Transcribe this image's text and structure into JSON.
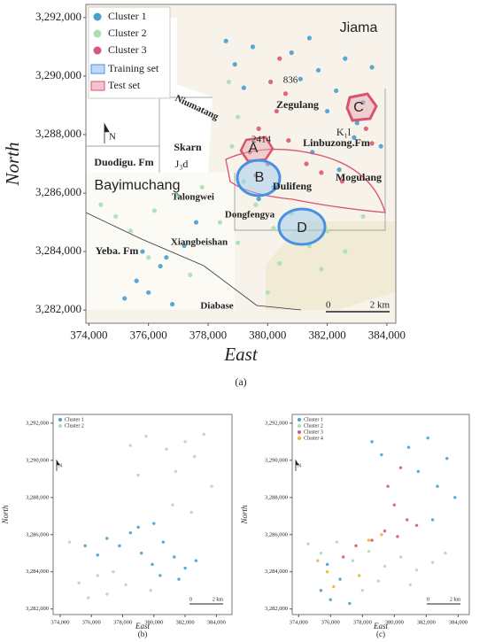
{
  "chart_data": [
    {
      "type": "scatter",
      "caption": "(a)",
      "x_label": "East",
      "y_label": "North",
      "xlim": [
        373900,
        384300
      ],
      "ylim": [
        3281550,
        3292450
      ],
      "xticks": [
        {
          "value": 374000,
          "label": "374,000"
        },
        {
          "value": 376000,
          "label": "376,000"
        },
        {
          "value": 378000,
          "label": "378,000"
        },
        {
          "value": 380000,
          "label": "380,000"
        },
        {
          "value": 382000,
          "label": "382,000"
        },
        {
          "value": 384000,
          "label": "384,000"
        }
      ],
      "yticks": [
        {
          "value": 3282000,
          "label": "3,282,000"
        },
        {
          "value": 3284000,
          "label": "3,284,000"
        },
        {
          "value": 3286000,
          "label": "3,286,000"
        },
        {
          "value": 3288000,
          "label": "3,288,000"
        },
        {
          "value": 3290000,
          "label": "3,290,000"
        },
        {
          "value": 3292000,
          "label": "3,292,000"
        }
      ],
      "legend": "upper left",
      "series": [
        {
          "name": "Cluster 1",
          "color": "#4a9fce",
          "x": [
            378600,
            378900,
            379200,
            379500,
            380800,
            381100,
            381400,
            381700,
            382000,
            382300,
            382600,
            382900,
            383200,
            383500,
            383800,
            381500,
            382400,
            383000,
            375200,
            375600,
            376000,
            376400,
            376800,
            377200,
            375800,
            376600,
            377600,
            379700,
            380200
          ],
          "y": [
            3291200,
            3290400,
            3289600,
            3291000,
            3290800,
            3289900,
            3291300,
            3290200,
            3288800,
            3289500,
            3290600,
            3287900,
            3289100,
            3290300,
            3287600,
            3287400,
            3286800,
            3288400,
            3282400,
            3283000,
            3282600,
            3283500,
            3282200,
            3284200,
            3284000,
            3283800,
            3285000,
            3285800,
            3286200
          ]
        },
        {
          "name": "Cluster 2",
          "color": "#a8e0b0",
          "x": [
            374400,
            374900,
            375400,
            376200,
            377000,
            377800,
            378400,
            379000,
            379600,
            380200,
            380800,
            381400,
            382000,
            382600,
            383200,
            379200,
            380400,
            381800,
            378700,
            379000,
            378800,
            377400,
            376000,
            380000
          ],
          "y": [
            3285600,
            3285200,
            3284700,
            3285400,
            3285900,
            3286200,
            3285000,
            3284300,
            3285600,
            3284800,
            3285300,
            3284200,
            3284700,
            3284000,
            3285200,
            3286400,
            3283600,
            3283400,
            3289800,
            3288600,
            3287600,
            3283200,
            3283800,
            3282600
          ]
        },
        {
          "name": "Cluster 3",
          "color": "#d9577a",
          "x": [
            379400,
            379700,
            380000,
            380300,
            380600,
            379600,
            380100,
            380700,
            381300,
            381800,
            383300,
            383500,
            382500,
            380400
          ],
          "y": [
            3287400,
            3288200,
            3287000,
            3288800,
            3289400,
            3286600,
            3289800,
            3287800,
            3287000,
            3286700,
            3288200,
            3287700,
            3286400,
            3290600
          ]
        }
      ],
      "regions": [
        {
          "name": "Training set",
          "color": "#4a90e2"
        },
        {
          "name": "Test set",
          "color": "#d9536e"
        }
      ],
      "annotations": [
        "Jiama",
        "836",
        "Zegulang",
        "C",
        "Niumatang",
        "K₁l",
        "Linbuzong.Fm",
        "Skarn",
        "2414",
        "A",
        "J₃d",
        "Duodigu. Fm",
        "Bayimuchang",
        "B",
        "Dulifeng",
        "Mogulang",
        "Talongwei",
        "Dongfengya",
        "D",
        "Xiangbeishan",
        "Yeba. Fm",
        "Diabase",
        "N"
      ],
      "scalebar_labels": [
        "0",
        "2 km"
      ]
    },
    {
      "type": "scatter",
      "caption": "(b)",
      "x_label": "East",
      "y_label": "North",
      "xlim": [
        373550,
        385000
      ],
      "ylim": [
        3281700,
        3292470
      ],
      "xticks": [
        {
          "value": 374000,
          "label": "374,000"
        },
        {
          "value": 376000,
          "label": "376,000"
        },
        {
          "value": 378000,
          "label": "378,000"
        },
        {
          "value": 380000,
          "label": "380,000"
        },
        {
          "value": 382000,
          "label": "382,000"
        },
        {
          "value": 384000,
          "label": "384,000"
        }
      ],
      "yticks": [
        {
          "value": 3282000,
          "label": "3,282,000"
        },
        {
          "value": 3284000,
          "label": "3,284,000"
        },
        {
          "value": 3286000,
          "label": "3,286,000"
        },
        {
          "value": 3288000,
          "label": "3,288,000"
        },
        {
          "value": 3290000,
          "label": "3,290,000"
        },
        {
          "value": 3292000,
          "label": "3,292,000"
        }
      ],
      "legend": "upper left",
      "series": [
        {
          "name": "Cluster 1",
          "color": "#4a9fce",
          "x": [
            377000,
            377800,
            378500,
            379200,
            379900,
            380600,
            381300,
            382000,
            382700,
            379000,
            380400,
            381600,
            375600,
            376400,
            380000
          ],
          "y": [
            3285800,
            3285400,
            3286100,
            3285000,
            3284400,
            3285600,
            3284800,
            3284200,
            3284600,
            3286400,
            3283800,
            3283600,
            3285400,
            3284900,
            3286600
          ]
        },
        {
          "name": "Cluster 2",
          "color": "#a8e0b0",
          "x": [
            378500,
            379000,
            379500,
            380800,
            381400,
            382000,
            382600,
            383200,
            383700,
            381200,
            382400,
            374600,
            375200,
            375800,
            376400,
            377000,
            377400,
            378200,
            379800
          ],
          "y": [
            3290800,
            3289200,
            3291300,
            3290600,
            3289400,
            3291000,
            3290200,
            3291400,
            3288600,
            3287600,
            3287200,
            3285600,
            3283400,
            3282600,
            3283800,
            3282800,
            3284000,
            3283300,
            3283000
          ]
        }
      ],
      "annotations": [
        "N"
      ],
      "scalebar_labels": [
        "0",
        "2 km"
      ]
    },
    {
      "type": "scatter",
      "caption": "(c)",
      "x_label": "East",
      "y_label": "North",
      "xlim": [
        373600,
        384700
      ],
      "ylim": [
        3281700,
        3292470
      ],
      "xticks": [
        {
          "value": 374000,
          "label": "374,000"
        },
        {
          "value": 376000,
          "label": "376,000"
        },
        {
          "value": 378000,
          "label": "378,000"
        },
        {
          "value": 380000,
          "label": "380,000"
        },
        {
          "value": 382000,
          "label": "382,000"
        },
        {
          "value": 384000,
          "label": "384,000"
        }
      ],
      "yticks": [
        {
          "value": 3282000,
          "label": "3,282,000"
        },
        {
          "value": 3284000,
          "label": "3,284,000"
        },
        {
          "value": 3286000,
          "label": "3,286,000"
        },
        {
          "value": 3288000,
          "label": "3,288,000"
        },
        {
          "value": 3290000,
          "label": "3,290,000"
        },
        {
          "value": 3292000,
          "label": "3,292,000"
        }
      ],
      "legend": "upper left",
      "series": [
        {
          "name": "Cluster 1",
          "color": "#4a9fce",
          "x": [
            378600,
            379200,
            380900,
            381500,
            382100,
            382700,
            383300,
            383800,
            382400,
            375400,
            376000,
            376600,
            377200,
            375800
          ],
          "y": [
            3291000,
            3290300,
            3290700,
            3289400,
            3291200,
            3288600,
            3290100,
            3288000,
            3286800,
            3283000,
            3282500,
            3283600,
            3282300,
            3284400
          ]
        },
        {
          "name": "Cluster 2",
          "color": "#a8e0b0",
          "x": [
            374600,
            375400,
            376400,
            377400,
            378400,
            379400,
            380400,
            381400,
            382400,
            383200,
            379000,
            381000,
            378000
          ],
          "y": [
            3285500,
            3285000,
            3285600,
            3284600,
            3285100,
            3284300,
            3284800,
            3284100,
            3284500,
            3285000,
            3283500,
            3283300,
            3283000
          ]
        },
        {
          "name": "Cluster 3",
          "color": "#d9577a",
          "x": [
            379600,
            380000,
            380400,
            380800,
            379400,
            378600,
            377600,
            376800,
            381400,
            380200
          ],
          "y": [
            3288600,
            3287600,
            3289600,
            3286800,
            3286200,
            3285700,
            3285400,
            3284800,
            3286500,
            3285900
          ]
        },
        {
          "name": "Cluster 4",
          "color": "#f0b429",
          "x": [
            375200,
            375800,
            376200,
            377800,
            379200,
            378400
          ],
          "y": [
            3284600,
            3284000,
            3283200,
            3283800,
            3286000,
            3285700
          ]
        }
      ],
      "annotations": [
        "N"
      ],
      "scalebar_labels": [
        "0",
        "2 km"
      ]
    }
  ]
}
